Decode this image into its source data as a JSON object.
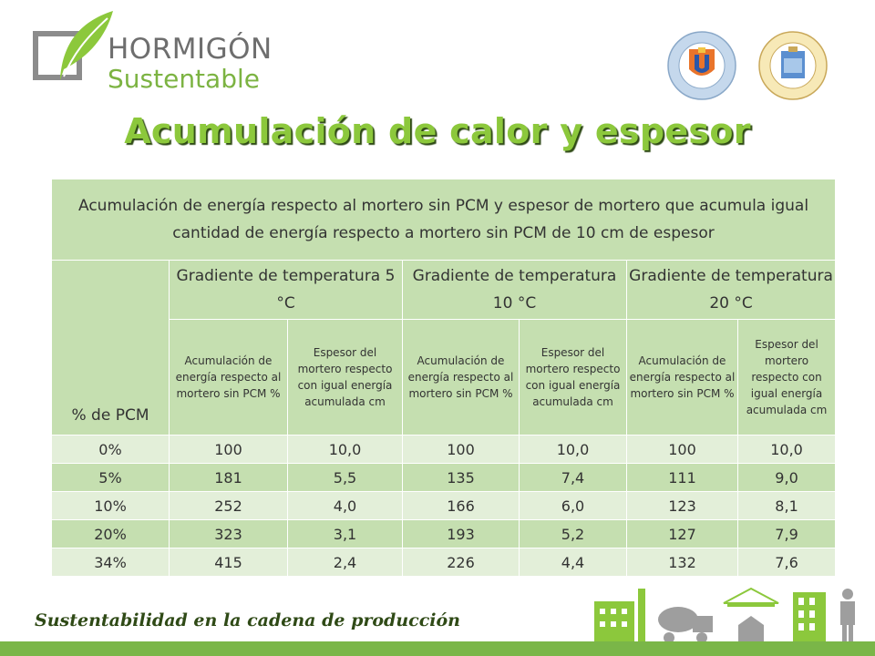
{
  "header": {
    "logo_line1": "HORMIGÓN",
    "logo_line2": "Sustentable",
    "title": "Acumulación de calor y espesor"
  },
  "table": {
    "caption": "Acumulación de energía respecto al mortero sin PCM y espesor de mortero que acumula igual cantidad de energía respecto a mortero sin PCM de 10 cm de espesor",
    "row_header": "% de PCM",
    "gradients": [
      "Gradiente de temperatura 5 °C",
      "Gradiente de temperatura 10 °C",
      "Gradiente de temperatura 20 °C"
    ],
    "sub_headers": [
      "Acumulación de energía respecto al mortero sin PCM %",
      "Espesor del mortero respecto con igual energía acumulada cm",
      "Acumulación de energía respecto al mortero sin PCM %",
      "Espesor del mortero respecto con igual energía acumulada cm",
      "Acumulación de energía respecto al mortero sin PCM %",
      "Espesor del mortero respecto con igual energía acumulada cm"
    ],
    "rows": [
      [
        "0%",
        "100",
        "10,0",
        "100",
        "10,0",
        "100",
        "10,0"
      ],
      [
        "5%",
        "181",
        "5,5",
        "135",
        "7,4",
        "111",
        "9,0"
      ],
      [
        "10%",
        "252",
        "4,0",
        "166",
        "6,0",
        "123",
        "8,1"
      ],
      [
        "20%",
        "323",
        "3,1",
        "193",
        "5,2",
        "127",
        "7,9"
      ],
      [
        "34%",
        "415",
        "2,4",
        "226",
        "4,4",
        "132",
        "7,6"
      ]
    ]
  },
  "footer": {
    "tagline": "Sustentabilidad en la cadena de producción"
  },
  "icons": {
    "logo": "leaf-square-logo",
    "seal1": "universidad-catolica-del-norte-seal",
    "seal2": "universidad-politecnica-madrid-seal",
    "footer": "construction-process-icons"
  },
  "colors": {
    "title_green": "#8cc83c",
    "table_green": "#c5dfb0",
    "table_light": "#e3efd9",
    "footer_green": "#7ab648"
  }
}
